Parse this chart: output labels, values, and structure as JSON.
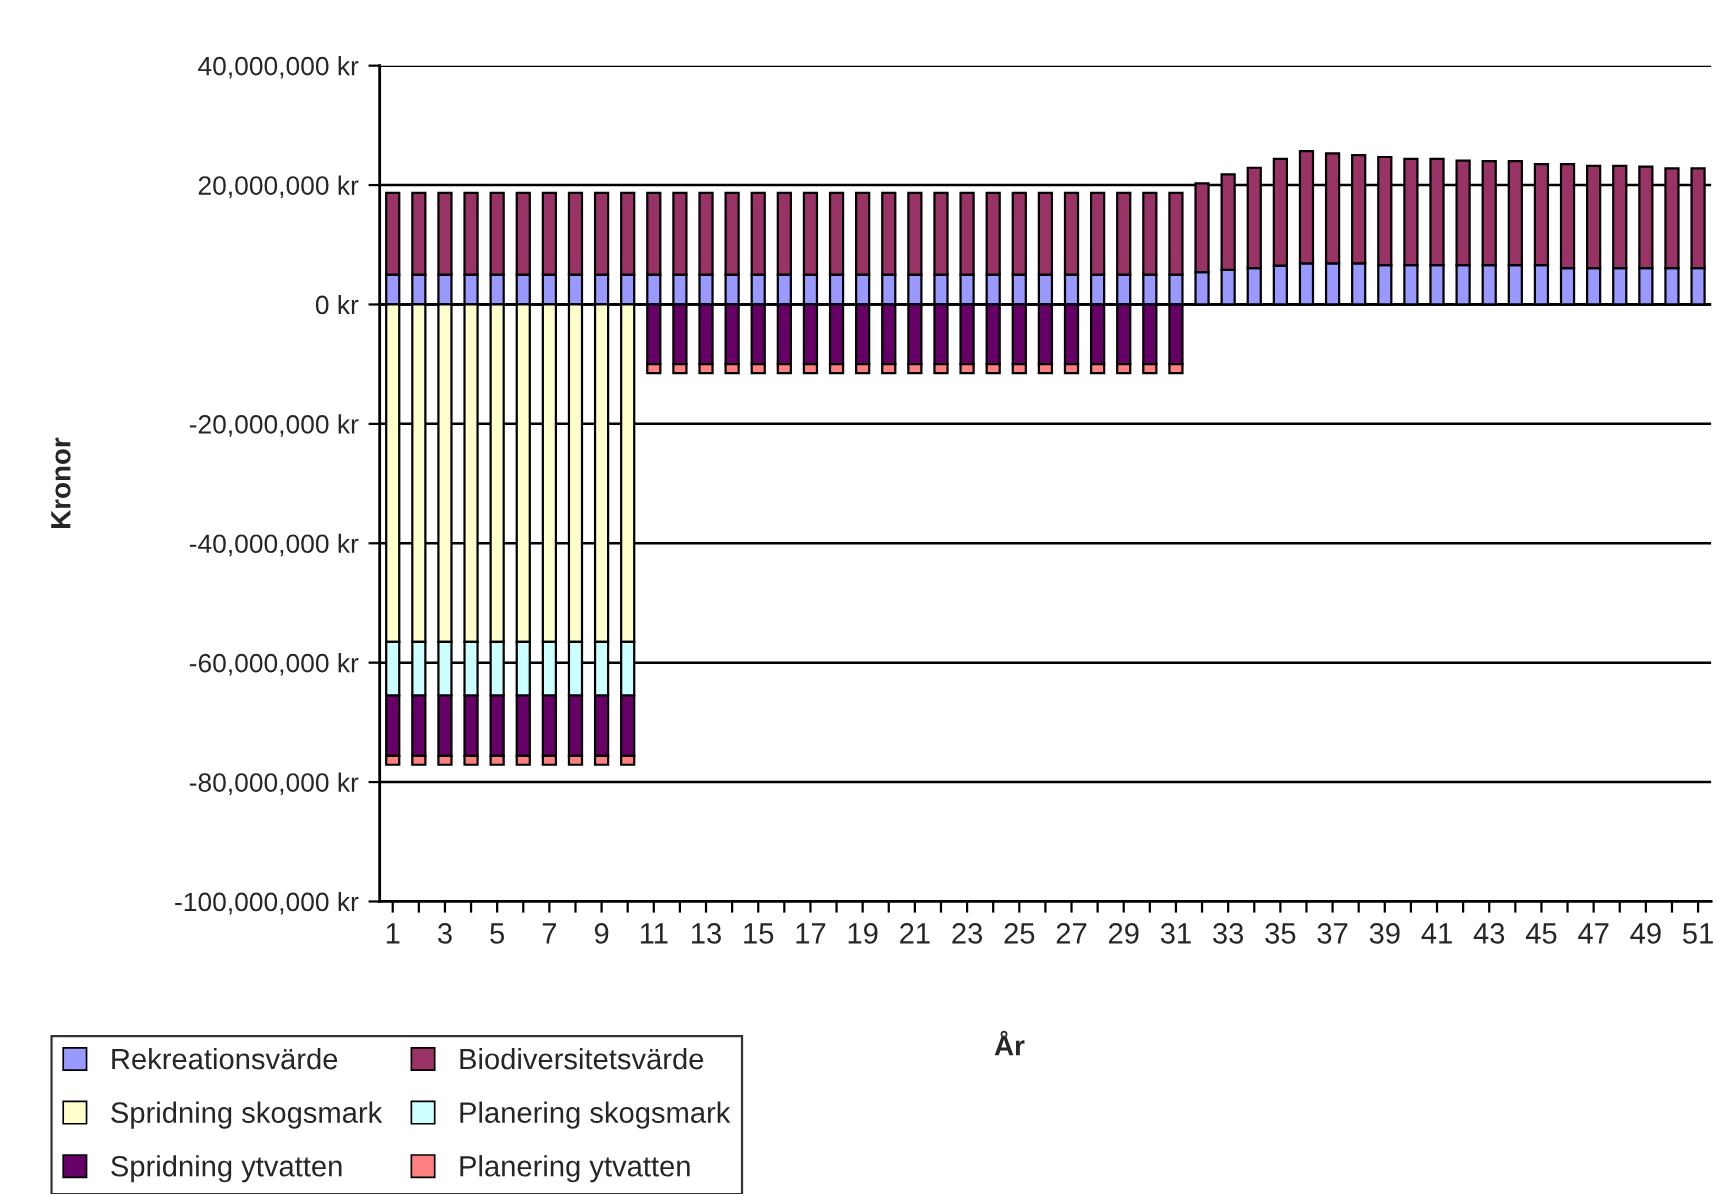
{
  "chart_data": {
    "type": "bar",
    "stacked": true,
    "xlabel": "År",
    "ylabel": "Kronor",
    "categories": [
      "1",
      null,
      "3",
      null,
      "5",
      null,
      "7",
      null,
      "9",
      null,
      "11",
      null,
      "13",
      null,
      "15",
      null,
      "17",
      null,
      "19",
      null,
      "21",
      null,
      "23",
      null,
      "25",
      null,
      "27",
      null,
      "29",
      null,
      "31",
      null,
      "33",
      null,
      "35",
      null,
      "37",
      null,
      "39",
      null,
      "41",
      null,
      "43",
      null,
      "45",
      null,
      "47",
      null,
      "49",
      null,
      "51"
    ],
    "series": [
      {
        "name": "Rekreationsvärde",
        "color": "#9999ff",
        "values": [
          5000000,
          5000000,
          5000000,
          5000000,
          5000000,
          5000000,
          5000000,
          5000000,
          5000000,
          5000000,
          5000000,
          5000000,
          5000000,
          5000000,
          5000000,
          5000000,
          5000000,
          5000000,
          5000000,
          5000000,
          5000000,
          5000000,
          5000000,
          5000000,
          5000000,
          5000000,
          5000000,
          5000000,
          5000000,
          5000000,
          5000000,
          5400000,
          5800000,
          6100000,
          6500000,
          6900000,
          6900000,
          6900000,
          6600000,
          6600000,
          6600000,
          6600000,
          6600000,
          6600000,
          6600000,
          6100000,
          6100000,
          6100000,
          6100000,
          6100000,
          6100000
        ]
      },
      {
        "name": "Biodiversitetsvärde",
        "color": "#993366",
        "values": [
          13700000,
          13700000,
          13700000,
          13700000,
          13700000,
          13700000,
          13700000,
          13700000,
          13700000,
          13700000,
          13700000,
          13700000,
          13700000,
          13700000,
          13700000,
          13700000,
          13700000,
          13700000,
          13700000,
          13700000,
          13700000,
          13700000,
          13700000,
          13700000,
          13700000,
          13700000,
          13700000,
          13700000,
          13700000,
          13700000,
          13700000,
          14900000,
          16000000,
          16800000,
          17900000,
          18800000,
          18400000,
          18100000,
          18100000,
          17800000,
          17800000,
          17500000,
          17400000,
          17400000,
          16900000,
          17400000,
          17100000,
          17100000,
          17000000,
          16700000,
          16700000
        ]
      },
      {
        "name": "Spridning skogsmark",
        "color": "#ffffcc",
        "values": [
          -56500000,
          -56500000,
          -56500000,
          -56500000,
          -56500000,
          -56500000,
          -56500000,
          -56500000,
          -56500000,
          -56500000,
          null,
          null,
          null,
          null,
          null,
          null,
          null,
          null,
          null,
          null,
          null,
          null,
          null,
          null,
          null,
          null,
          null,
          null,
          null,
          null,
          null,
          null,
          null,
          null,
          null,
          null,
          null,
          null,
          null,
          null,
          null,
          null,
          null,
          null,
          null,
          null,
          null,
          null,
          null,
          null,
          null
        ]
      },
      {
        "name": "Planering skogsmark",
        "color": "#ccffff",
        "values": [
          -9000000,
          -9000000,
          -9000000,
          -9000000,
          -9000000,
          -9000000,
          -9000000,
          -9000000,
          -9000000,
          -9000000,
          null,
          null,
          null,
          null,
          null,
          null,
          null,
          null,
          null,
          null,
          null,
          null,
          null,
          null,
          null,
          null,
          null,
          null,
          null,
          null,
          null,
          null,
          null,
          null,
          null,
          null,
          null,
          null,
          null,
          null,
          null,
          null,
          null,
          null,
          null,
          null,
          null,
          null,
          null,
          null,
          null
        ]
      },
      {
        "name": "Spridning ytvatten",
        "color": "#660066",
        "values": [
          -10100000,
          -10100000,
          -10100000,
          -10100000,
          -10100000,
          -10100000,
          -10100000,
          -10100000,
          -10100000,
          -10100000,
          -10000000,
          -10000000,
          -10000000,
          -10000000,
          -10000000,
          -10000000,
          -10000000,
          -10000000,
          -10000000,
          -10000000,
          -10000000,
          -10000000,
          -10000000,
          -10000000,
          -10000000,
          -10000000,
          -10000000,
          -10000000,
          -10000000,
          -10000000,
          -10000000,
          null,
          null,
          null,
          null,
          null,
          null,
          null,
          null,
          null,
          null,
          null,
          null,
          null,
          null,
          null,
          null,
          null,
          null,
          null,
          null
        ]
      },
      {
        "name": "Planering ytvatten",
        "color": "#ff8080",
        "values": [
          -1500000,
          -1500000,
          -1500000,
          -1500000,
          -1500000,
          -1500000,
          -1500000,
          -1500000,
          -1500000,
          -1500000,
          -1500000,
          -1500000,
          -1500000,
          -1500000,
          -1500000,
          -1500000,
          -1500000,
          -1500000,
          -1500000,
          -1500000,
          -1500000,
          -1500000,
          -1500000,
          -1500000,
          -1500000,
          -1500000,
          -1500000,
          -1500000,
          -1500000,
          -1500000,
          -1500000,
          null,
          null,
          null,
          null,
          null,
          null,
          null,
          null,
          null,
          null,
          null,
          null,
          null,
          null,
          null,
          null,
          null,
          null,
          null,
          null
        ]
      }
    ],
    "ylim": [
      -100000000,
      40000000
    ],
    "yticks": [
      {
        "value": -100000000,
        "label": "-100,000,000 kr"
      },
      {
        "value": -80000000,
        "label": "-80,000,000 kr"
      },
      {
        "value": -60000000,
        "label": "-60,000,000 kr"
      },
      {
        "value": -40000000,
        "label": "-40,000,000 kr"
      },
      {
        "value": -20000000,
        "label": "-20,000,000 kr"
      },
      {
        "value": 0,
        "label": "0 kr"
      },
      {
        "value": 20000000,
        "label": "20,000,000 kr"
      },
      {
        "value": 40000000,
        "label": "40,000,000 kr"
      }
    ],
    "grid": "y",
    "legend": "bottom left"
  }
}
